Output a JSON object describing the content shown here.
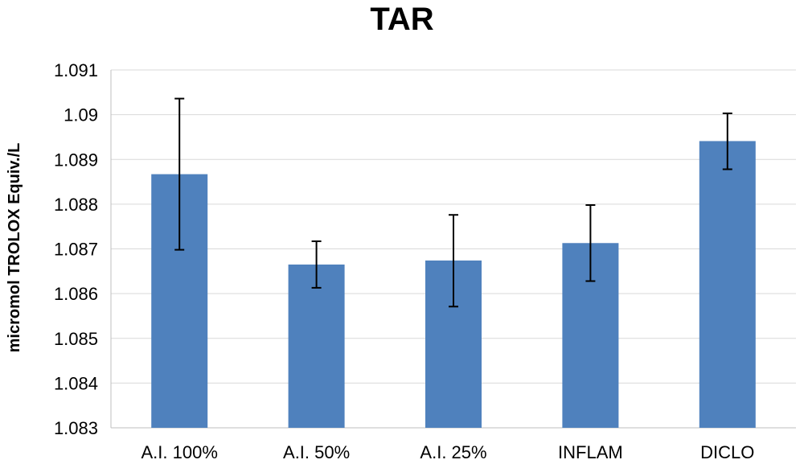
{
  "chart_data": {
    "type": "bar",
    "title": "TAR",
    "xlabel": "",
    "ylabel": "micromol TROLOX Equiv./L",
    "categories": [
      "A.I. 100%",
      "A.I. 50%",
      "A.I. 25%",
      "INFLAM",
      "DICLO"
    ],
    "values": [
      1.08867,
      1.08665,
      1.08674,
      1.08713,
      1.08941
    ],
    "error_low": [
      1.08698,
      1.08613,
      1.08571,
      1.08628,
      1.08878
    ],
    "error_high": [
      1.09036,
      1.08717,
      1.08776,
      1.08798,
      1.09003
    ],
    "ylim": [
      1.083,
      1.091
    ],
    "yticks": [
      "1.083",
      "1.084",
      "1.085",
      "1.086",
      "1.087",
      "1.088",
      "1.089",
      "1.09",
      "1.091"
    ],
    "ytick_values": [
      1.083,
      1.084,
      1.085,
      1.086,
      1.087,
      1.088,
      1.089,
      1.09,
      1.091
    ],
    "grid": true,
    "colors": {
      "bar": "#4f81bd",
      "error": "#000000",
      "grid": "#d9d9d9"
    }
  }
}
